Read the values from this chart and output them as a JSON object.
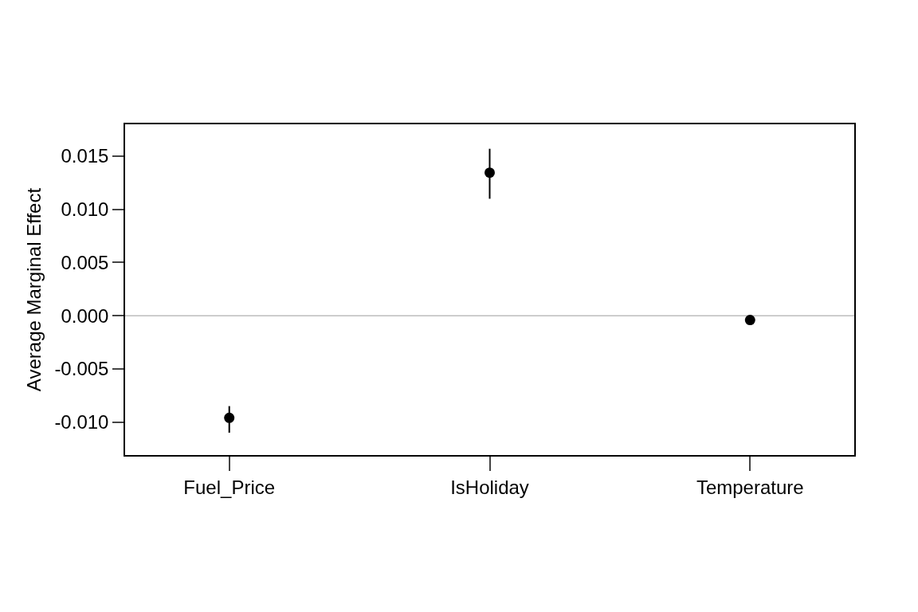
{
  "chart_data": {
    "type": "scatter",
    "ylabel": "Average Marginal Effect",
    "categories": [
      "Fuel_Price",
      "IsHoliday",
      "Temperature"
    ],
    "series": [
      {
        "color": "#000000",
        "values": [
          -0.0096,
          0.01345,
          -0.0004
        ],
        "errors": [
          [
            -0.011,
            -0.0085
          ],
          [
            0.011,
            0.0157
          ],
          null
        ]
      }
    ],
    "ylim": [
      -0.0131,
      0.018
    ],
    "yticks": [
      {
        "value": -0.01,
        "label": "-0.010"
      },
      {
        "value": -0.005,
        "label": "-0.005"
      },
      {
        "value": 0,
        "label": "0.000"
      },
      {
        "value": 0.005,
        "label": "0.005"
      },
      {
        "value": 0.01,
        "label": "0.010"
      },
      {
        "value": 0.015,
        "label": "0.015"
      }
    ],
    "ref_lines": [
      {
        "axis": "y",
        "value": 0,
        "color": "#bebebe"
      }
    ],
    "grid": false,
    "marker": "circle"
  }
}
